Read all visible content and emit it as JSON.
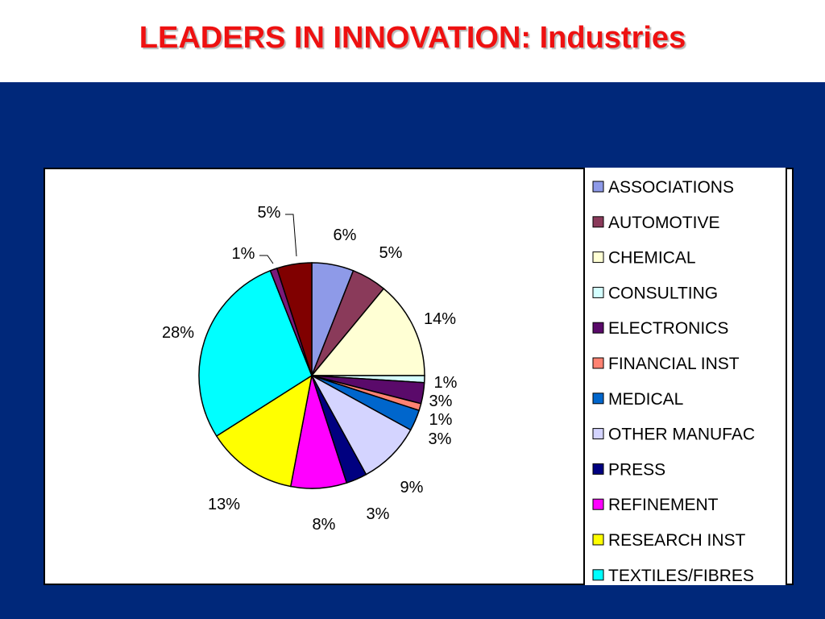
{
  "slide": {
    "title": "LEADERS IN INNOVATION: Industries",
    "title_color": "#ee1111",
    "background_color": "#00287a"
  },
  "chart_data": {
    "type": "pie",
    "title": "",
    "legend_position": "right",
    "slices": [
      {
        "label": "ASSOCIATIONS",
        "value": 6,
        "display": "6%",
        "color": "#8e9ae8"
      },
      {
        "label": "AUTOMOTIVE",
        "value": 5,
        "display": "5%",
        "color": "#8a3a5a"
      },
      {
        "label": "CHEMICAL",
        "value": 14,
        "display": "14%",
        "color": "#ffffd4"
      },
      {
        "label": "CONSULTING",
        "value": 1,
        "display": "1%",
        "color": "#d4ffff"
      },
      {
        "label": "ELECTRONICS",
        "value": 3,
        "display": "3%",
        "color": "#5a0a6a"
      },
      {
        "label": "FINANCIAL INST",
        "value": 1,
        "display": "1%",
        "color": "#ff8272"
      },
      {
        "label": "MEDICAL",
        "value": 3,
        "display": "3%",
        "color": "#0066cc"
      },
      {
        "label": "OTHER MANUFAC",
        "value": 9,
        "display": "9%",
        "color": "#d4d4ff"
      },
      {
        "label": "PRESS",
        "value": 3,
        "display": "3%",
        "color": "#000080"
      },
      {
        "label": "REFINEMENT",
        "value": 8,
        "display": "8%",
        "color": "#ff00ff"
      },
      {
        "label": "RESEARCH INST",
        "value": 13,
        "display": "13%",
        "color": "#ffff00"
      },
      {
        "label": "TEXTILES/FIBRES",
        "value": 28,
        "display": "28%",
        "color": "#00ffff"
      },
      {
        "label": "",
        "value": 1,
        "display": "1%",
        "color": "#7a1a7a"
      },
      {
        "label": "",
        "value": 5,
        "display": "5%",
        "color": "#800000"
      }
    ]
  }
}
